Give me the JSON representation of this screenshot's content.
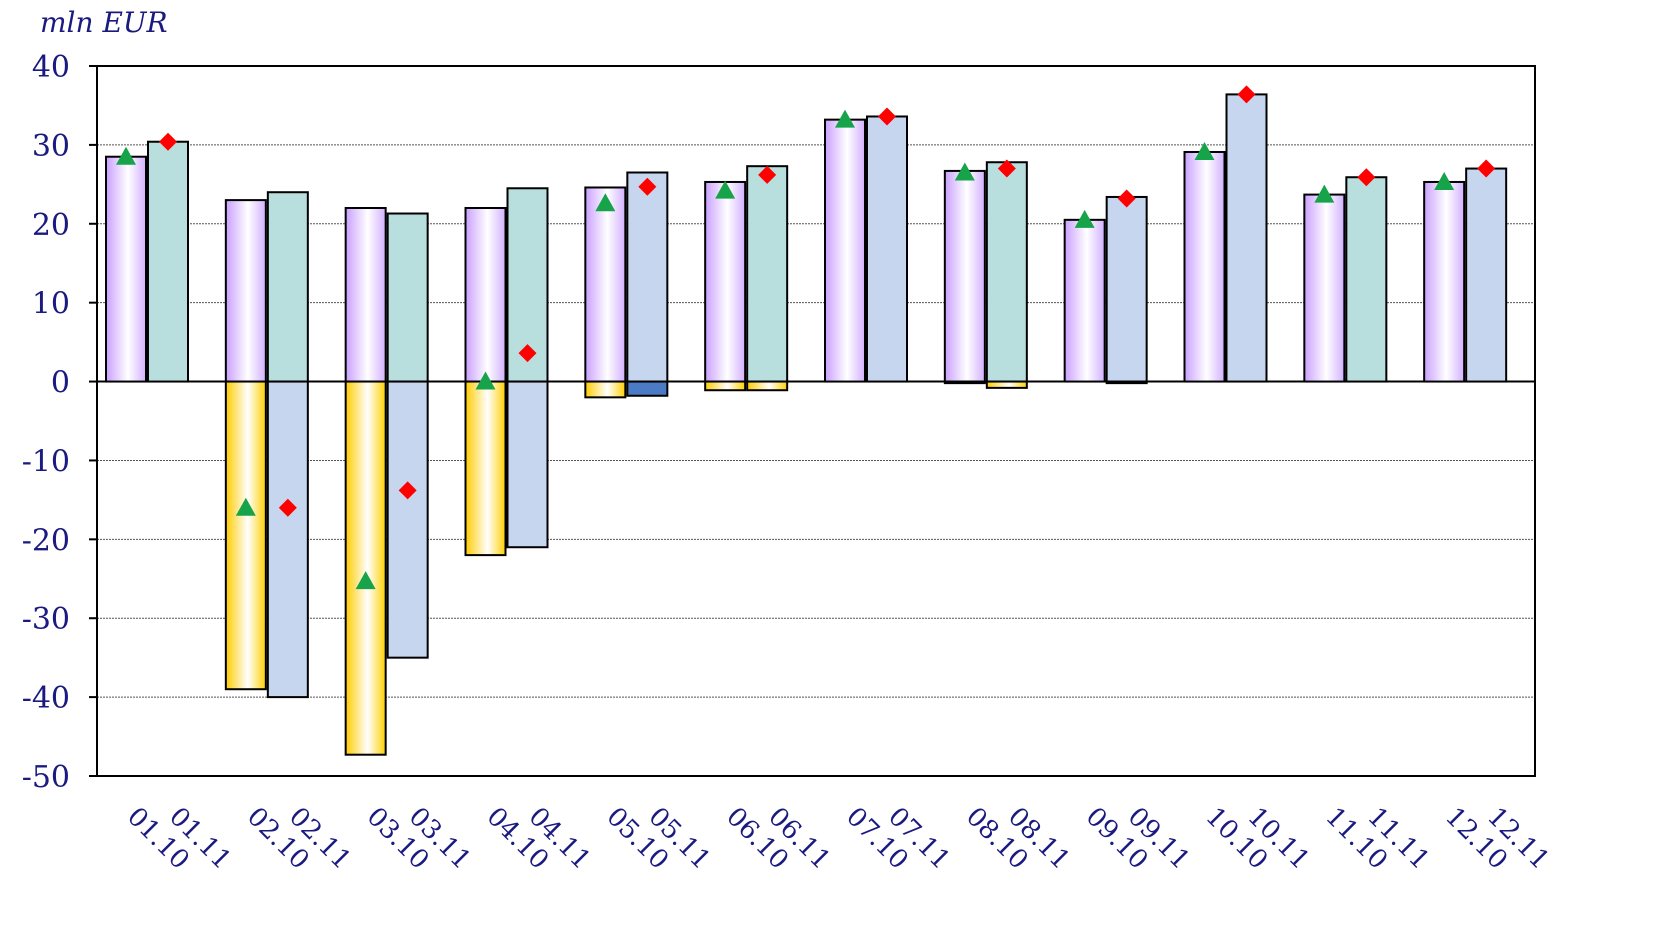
{
  "chart_data": {
    "type": "bar",
    "ylabel": "mln EUR",
    "ylim": [
      -50,
      40
    ],
    "yticks": [
      "40",
      "30",
      "20",
      "10",
      "0",
      "-10",
      "-20",
      "-30",
      "-40",
      "-50"
    ],
    "yticks_values": [
      40,
      30,
      20,
      10,
      0,
      -10,
      -20,
      -30,
      -40,
      -50
    ],
    "grid": true,
    "groups": [
      {
        "labels": [
          "01.10",
          "01.11"
        ],
        "pos": [
          28.5,
          30.4
        ],
        "neg": [
          0,
          0
        ],
        "net": [
          28.5,
          30.4
        ],
        "fill2": "teal"
      },
      {
        "labels": [
          "02.10",
          "02.11"
        ],
        "pos": [
          23.0,
          24.0
        ],
        "neg": [
          -39.0,
          -40.0
        ],
        "net": [
          -16.0,
          -16.0
        ],
        "fill2": "teal"
      },
      {
        "labels": [
          "03.10",
          "03.11"
        ],
        "pos": [
          22.0,
          21.3
        ],
        "neg": [
          -47.3,
          -35.0
        ],
        "net": [
          -25.3,
          -13.8
        ],
        "fill2": "teal"
      },
      {
        "labels": [
          "04.10",
          "04.11"
        ],
        "pos": [
          22.0,
          24.5
        ],
        "neg": [
          -22.0,
          -21.0
        ],
        "net": [
          0.0,
          3.6
        ],
        "fill2": "teal"
      },
      {
        "labels": [
          "05.10",
          "05.11"
        ],
        "pos": [
          24.6,
          26.5
        ],
        "neg": [
          -2.0,
          -1.8
        ],
        "net": [
          22.6,
          24.7
        ],
        "fill2": "blue"
      },
      {
        "labels": [
          "06.10",
          "06.11"
        ],
        "pos": [
          25.3,
          27.3
        ],
        "neg": [
          -1.1,
          -1.1
        ],
        "net": [
          24.2,
          26.2
        ],
        "fill2": "teal"
      },
      {
        "labels": [
          "07.10",
          "07.11"
        ],
        "pos": [
          33.2,
          33.6
        ],
        "neg": [
          0,
          0
        ],
        "net": [
          33.2,
          33.6
        ],
        "fill2": "blue"
      },
      {
        "labels": [
          "08.10",
          "08.11"
        ],
        "pos": [
          26.7,
          27.8
        ],
        "neg": [
          -0.2,
          -0.8
        ],
        "net": [
          26.5,
          27.0
        ],
        "fill2": "teal"
      },
      {
        "labels": [
          "09.10",
          "09.11"
        ],
        "pos": [
          20.5,
          23.4
        ],
        "neg": [
          0,
          -0.2
        ],
        "net": [
          20.5,
          23.2
        ],
        "fill2": "blue"
      },
      {
        "labels": [
          "10.10",
          "10.11"
        ],
        "pos": [
          29.1,
          36.4
        ],
        "neg": [
          0,
          0
        ],
        "net": [
          29.1,
          36.4
        ],
        "fill2": "blue"
      },
      {
        "labels": [
          "11.10",
          "11.11"
        ],
        "pos": [
          23.7,
          25.9
        ],
        "neg": [
          0,
          0
        ],
        "net": [
          23.7,
          25.9
        ],
        "fill2": "teal"
      },
      {
        "labels": [
          "12.10",
          "12.11"
        ],
        "pos": [
          25.3,
          27.0
        ],
        "neg": [
          0,
          0
        ],
        "net": [
          25.3,
          27.0
        ],
        "fill2": "blue"
      }
    ],
    "colors": {
      "pos10": "#d9b8ff",
      "neg10": "#ffd21a",
      "teal": "#b8dede",
      "blue": "#c6d6ee",
      "negTealBlue": "#c6d6ee",
      "darkBlue": "#4a7bc4",
      "triangle": "#16a34a",
      "diamond": "#ff0000",
      "text": "#1a1a80"
    }
  }
}
